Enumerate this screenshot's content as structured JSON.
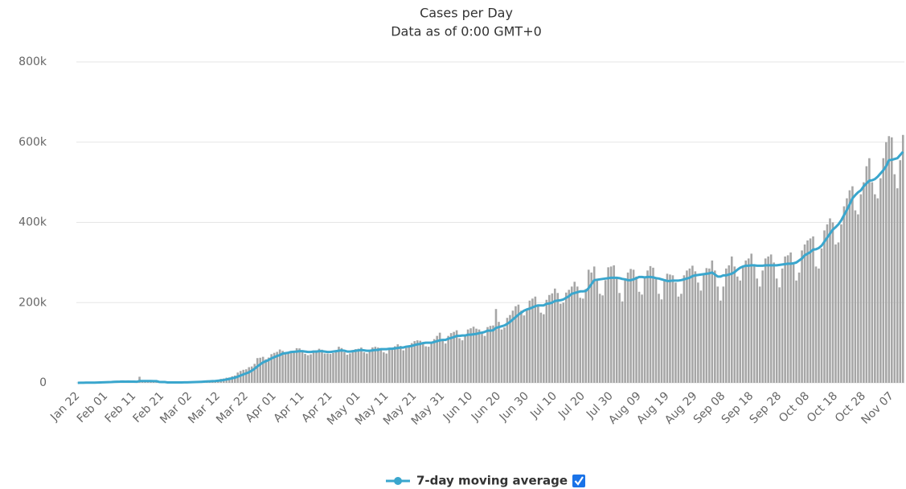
{
  "chart_data": {
    "type": "bar_line",
    "title": "Cases per Day",
    "subtitle": "Data as of 0:00 GMT+0",
    "categories": [
      "Jan 22",
      null,
      null,
      null,
      null,
      null,
      null,
      null,
      null,
      null,
      "Feb 01",
      null,
      null,
      null,
      null,
      null,
      null,
      null,
      null,
      null,
      "Feb 11",
      null,
      null,
      null,
      null,
      null,
      null,
      null,
      null,
      null,
      "Feb 21",
      null,
      null,
      null,
      null,
      null,
      null,
      null,
      null,
      null,
      "Mar 02",
      null,
      null,
      null,
      null,
      null,
      null,
      null,
      null,
      null,
      "Mar 12",
      null,
      null,
      null,
      null,
      null,
      null,
      null,
      null,
      null,
      "Mar 22",
      null,
      null,
      null,
      null,
      null,
      null,
      null,
      null,
      null,
      "Apr 01",
      null,
      null,
      null,
      null,
      null,
      null,
      null,
      null,
      null,
      "Apr 11",
      null,
      null,
      null,
      null,
      null,
      null,
      null,
      null,
      null,
      "Apr 21",
      null,
      null,
      null,
      null,
      null,
      null,
      null,
      null,
      null,
      "May 01",
      null,
      null,
      null,
      null,
      null,
      null,
      null,
      null,
      null,
      "May 11",
      null,
      null,
      null,
      null,
      null,
      null,
      null,
      null,
      null,
      "May 21",
      null,
      null,
      null,
      null,
      null,
      null,
      null,
      null,
      null,
      "May 31",
      null,
      null,
      null,
      null,
      null,
      null,
      null,
      null,
      null,
      "Jun 10",
      null,
      null,
      null,
      null,
      null,
      null,
      null,
      null,
      null,
      "Jun 20",
      null,
      null,
      null,
      null,
      null,
      null,
      null,
      null,
      null,
      "Jun 30",
      null,
      null,
      null,
      null,
      null,
      null,
      null,
      null,
      null,
      "Jul 10",
      null,
      null,
      null,
      null,
      null,
      null,
      null,
      null,
      null,
      "Jul 20",
      null,
      null,
      null,
      null,
      null,
      null,
      null,
      null,
      null,
      "Jul 30",
      null,
      null,
      null,
      null,
      null,
      null,
      null,
      null,
      null,
      "Aug 09",
      null,
      null,
      null,
      null,
      null,
      null,
      null,
      null,
      null,
      "Aug 19",
      null,
      null,
      null,
      null,
      null,
      null,
      null,
      null,
      null,
      "Aug 29",
      null,
      null,
      null,
      null,
      null,
      null,
      null,
      null,
      null,
      "Sep 08",
      null,
      null,
      null,
      null,
      null,
      null,
      null,
      null,
      null,
      "Sep 18",
      null,
      null,
      null,
      null,
      null,
      null,
      null,
      null,
      null,
      "Sep 28",
      null,
      null,
      null,
      null,
      null,
      null,
      null,
      null,
      null,
      "Oct 08",
      null,
      null,
      null,
      null,
      null,
      null,
      null,
      null,
      null,
      "Oct 18",
      null,
      null,
      null,
      null,
      null,
      null,
      null,
      null,
      null,
      "Oct 28",
      null,
      null,
      null,
      null,
      null,
      null,
      null,
      null,
      null,
      "Nov 07",
      null,
      null,
      null,
      null
    ],
    "series": [
      {
        "type": "bar",
        "color": "#a6a6a6",
        "values": [
          100,
          300,
          300,
          700,
          700,
          800,
          1500,
          1800,
          1700,
          2000,
          2100,
          2600,
          3200,
          3900,
          3700,
          3200,
          3400,
          2700,
          3000,
          2500,
          2100,
          2000,
          15200,
          5100,
          2600,
          2100,
          2000,
          1900,
          1700,
          600,
          1000,
          1100,
          800,
          600,
          900,
          1100,
          1300,
          1800,
          1900,
          1900,
          2000,
          2500,
          2300,
          2700,
          3900,
          4000,
          3900,
          4500,
          4300,
          5000,
          7500,
          9800,
          10700,
          12800,
          13500,
          16300,
          18200,
          25700,
          29600,
          32500,
          33800,
          39000,
          40800,
          47300,
          61700,
          62600,
          64900,
          58700,
          63000,
          71500,
          74800,
          77200,
          83100,
          79800,
          72700,
          73600,
          75600,
          77500,
          86400,
          85900,
          77900,
          72200,
          68900,
          71100,
          80600,
          81200,
          85000,
          82600,
          73100,
          72900,
          72000,
          74300,
          78200,
          90000,
          86700,
          76400,
          70100,
          73400,
          77500,
          84000,
          85100,
          88000,
          76200,
          73100,
          80400,
          88200,
          90000,
          88000,
          83000,
          76000,
          73000,
          86000,
          86000,
          91000,
          96000,
          92000,
          81000,
          87000,
          91000,
          99000,
          104000,
          106000,
          105000,
          98000,
          91000,
          90000,
          101000,
          109000,
          117000,
          125000,
          105000,
          98000,
          117000,
          124000,
          127000,
          131000,
          111000,
          106000,
          118000,
          133000,
          136000,
          140000,
          135000,
          133000,
          122000,
          117000,
          139000,
          142000,
          143000,
          184000,
          152000,
          133000,
          138000,
          162000,
          169000,
          180000,
          191000,
          195000,
          180000,
          168000,
          183000,
          205000,
          210000,
          215000,
          195000,
          175000,
          171000,
          207000,
          219000,
          223000,
          235000,
          224000,
          197000,
          200000,
          225000,
          232000,
          240000,
          252000,
          240000,
          212000,
          210000,
          234000,
          282000,
          275000,
          290000,
          255000,
          222000,
          218000,
          256000,
          288000,
          290000,
          293000,
          260000,
          224000,
          203000,
          257000,
          275000,
          284000,
          282000,
          265000,
          227000,
          220000,
          264000,
          280000,
          291000,
          287000,
          260000,
          222000,
          208000,
          255000,
          272000,
          270000,
          268000,
          250000,
          215000,
          222000,
          268000,
          280000,
          285000,
          292000,
          278000,
          250000,
          230000,
          270000,
          286000,
          285000,
          305000,
          280000,
          240000,
          205000,
          240000,
          285000,
          293000,
          315000,
          290000,
          265000,
          255000,
          290000,
          305000,
          310000,
          322000,
          295000,
          260000,
          240000,
          280000,
          310000,
          315000,
          320000,
          300000,
          260000,
          238000,
          285000,
          315000,
          318000,
          325000,
          295000,
          255000,
          275000,
          330000,
          345000,
          355000,
          360000,
          365000,
          290000,
          285000,
          335000,
          380000,
          395000,
          410000,
          400000,
          345000,
          350000,
          395000,
          440000,
          460000,
          480000,
          490000,
          430000,
          420000,
          470000,
          500000,
          540000,
          560000,
          500000,
          470000,
          460000,
          510000,
          560000,
          600000,
          615000,
          612000,
          520000,
          485000,
          555000,
          618000
        ]
      },
      {
        "type": "line",
        "name": "7-day moving average",
        "color": "#3aa6cd",
        "values": [
          100,
          200,
          200,
          400,
          400,
          500,
          600,
          800,
          1100,
          1300,
          1500,
          1800,
          2100,
          2600,
          2800,
          2900,
          3200,
          3100,
          3200,
          3100,
          2900,
          2700,
          4400,
          4600,
          4500,
          4500,
          4400,
          4300,
          4300,
          2300,
          2000,
          1900,
          1000,
          1000,
          900,
          900,
          1000,
          1100,
          1200,
          1300,
          1500,
          1800,
          2000,
          2300,
          2600,
          3000,
          3400,
          3800,
          4200,
          4500,
          5300,
          6100,
          7100,
          8400,
          9800,
          11400,
          13000,
          15400,
          18200,
          21000,
          23600,
          26400,
          30400,
          35000,
          41000,
          46000,
          51000,
          54000,
          57000,
          61000,
          64000,
          67000,
          69000,
          73000,
          74000,
          75000,
          77000,
          77500,
          78000,
          79000,
          79000,
          78000,
          77000,
          77000,
          78000,
          78000,
          79000,
          79000,
          78000,
          77000,
          77000,
          78000,
          79000,
          80000,
          81000,
          80000,
          78000,
          78000,
          79000,
          80000,
          81000,
          82000,
          81000,
          80000,
          80000,
          81000,
          82000,
          82000,
          84000,
          84000,
          84000,
          85000,
          85000,
          86000,
          87000,
          88000,
          88000,
          90000,
          91000,
          92000,
          94000,
          96000,
          97000,
          99000,
          100000,
          100000,
          100000,
          102000,
          104000,
          106000,
          107000,
          107000,
          110000,
          112000,
          114000,
          117000,
          117000,
          118000,
          118000,
          120000,
          120000,
          121000,
          122000,
          124000,
          125000,
          127000,
          130000,
          130000,
          131000,
          137000,
          139000,
          141000,
          143000,
          147000,
          152000,
          158000,
          164000,
          170000,
          175000,
          180000,
          183000,
          185000,
          188000,
          191000,
          193000,
          193000,
          193000,
          197000,
          198000,
          200000,
          204000,
          205000,
          206000,
          208000,
          212000,
          216000,
          222000,
          224000,
          226000,
          228000,
          228000,
          229000,
          236000,
          246000,
          256000,
          257000,
          258000,
          259000,
          260000,
          261000,
          262000,
          262000,
          262000,
          261000,
          259000,
          258000,
          256000,
          256000,
          258000,
          261000,
          264000,
          264000,
          263000,
          264000,
          264000,
          263000,
          261000,
          260000,
          258000,
          256000,
          254000,
          254000,
          255000,
          255000,
          255000,
          256000,
          258000,
          260000,
          262000,
          266000,
          268000,
          269000,
          270000,
          271000,
          272000,
          273000,
          275000,
          270000,
          265000,
          265000,
          268000,
          268000,
          270000,
          272000,
          276000,
          282000,
          287000,
          290000,
          292000,
          292000,
          293000,
          293000,
          292000,
          292000,
          292000,
          293000,
          293000,
          293000,
          293000,
          293000,
          294000,
          295000,
          296000,
          297000,
          297000,
          298000,
          300000,
          305000,
          310000,
          318000,
          322000,
          326000,
          332000,
          333000,
          336000,
          342000,
          352000,
          362000,
          372000,
          382000,
          388000,
          395000,
          405000,
          418000,
          431000,
          445000,
          460000,
          468000,
          475000,
          480000,
          490000,
          497000,
          504000,
          505000,
          508000,
          514000,
          522000,
          530000,
          540000,
          555000,
          556000,
          558000,
          560000,
          568000,
          576000
        ]
      }
    ],
    "ylim": [
      0,
      800000
    ],
    "yticks": [
      0,
      {
        "value": 200000,
        "label": "200k"
      },
      {
        "value": 400000,
        "label": "400k"
      },
      {
        "value": 600000,
        "label": "600k"
      },
      {
        "value": 800000,
        "label": "800k"
      }
    ],
    "grid": true
  }
}
